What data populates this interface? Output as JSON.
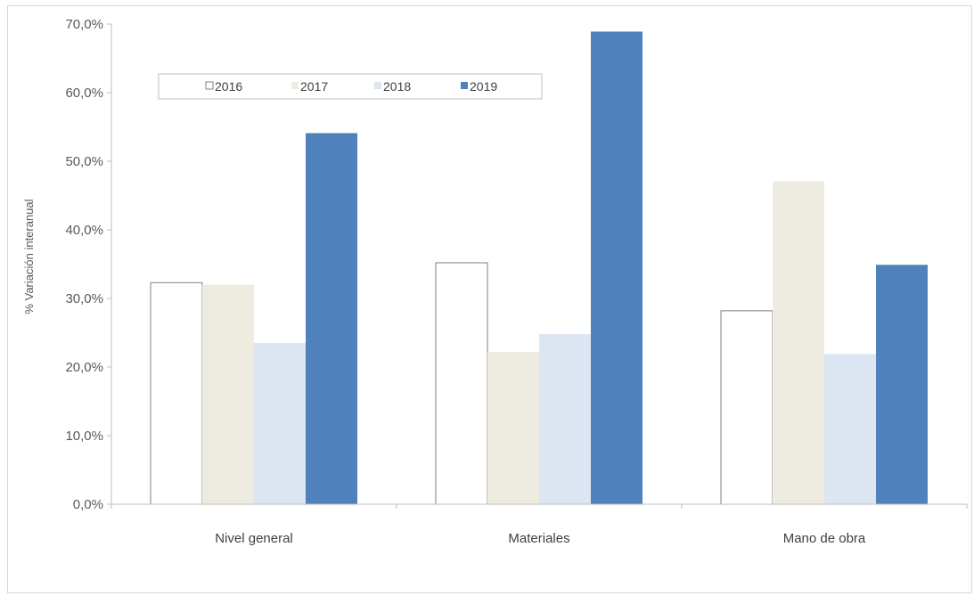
{
  "chart_data": {
    "type": "bar",
    "xlabel": "",
    "ylabel": "% Variación interanual",
    "ylim": [
      0,
      70
    ],
    "ytick_step": 10,
    "y_tick_labels": [
      "0,0%",
      "10,0%",
      "20,0%",
      "30,0%",
      "40,0%",
      "50,0%",
      "60,0%",
      "70,0%"
    ],
    "categories": [
      "Nivel general",
      "Materiales",
      "Mano de obra"
    ],
    "legend_position": "top-left",
    "grid": false,
    "series": [
      {
        "name": "2016",
        "fill": "#ffffff",
        "stroke": "#7f7f7f",
        "values": [
          32.3,
          35.2,
          28.2
        ]
      },
      {
        "name": "2017",
        "fill": "#eeece1",
        "stroke": "none",
        "values": [
          32.0,
          22.2,
          47.1
        ]
      },
      {
        "name": "2018",
        "fill": "#dce6f2",
        "stroke": "none",
        "values": [
          23.5,
          24.8,
          21.9
        ]
      },
      {
        "name": "2019",
        "fill": "#4f81bd",
        "stroke": "none",
        "values": [
          54.1,
          68.9,
          34.9
        ]
      }
    ]
  }
}
